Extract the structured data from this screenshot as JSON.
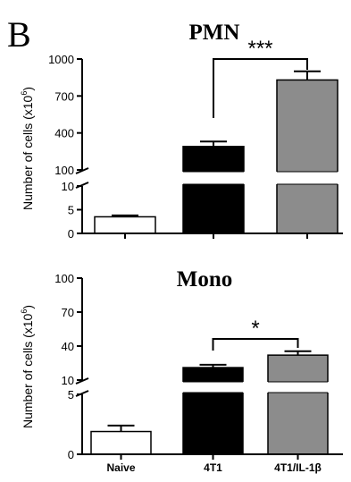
{
  "panel_letter": "B",
  "chart_data": [
    {
      "type": "bar",
      "title": "PMN",
      "ylabel": "Number of cells (x10",
      "ylabel_exp": "6",
      "ylabel_close": ")",
      "categories": [
        "Naive",
        "4T1",
        "4T1/IL-1β"
      ],
      "values": [
        3.5,
        290,
        830
      ],
      "errors": [
        0.3,
        40,
        70
      ],
      "colors": [
        "#ffffff",
        "#000000",
        "#8c8c8c"
      ],
      "axis_break": true,
      "lower_range": [
        0,
        10
      ],
      "upper_range": [
        100,
        1000
      ],
      "lower_ticks": [
        "0",
        "5",
        "10"
      ],
      "upper_ticks": [
        "100",
        "400",
        "700",
        "1000"
      ],
      "grid": false,
      "significance": {
        "from": "4T1",
        "to": "4T1/IL-1β",
        "label": "***"
      }
    },
    {
      "type": "bar",
      "title": "Mono",
      "ylabel": "Number of cells (x10",
      "ylabel_exp": "6",
      "ylabel_close": ")",
      "categories": [
        "Naive",
        "4T1",
        "4T1/IL-1β"
      ],
      "values": [
        1.9,
        21,
        32
      ],
      "errors": [
        0.5,
        2.5,
        3.5
      ],
      "colors": [
        "#ffffff",
        "#000000",
        "#8c8c8c"
      ],
      "axis_break": true,
      "lower_range": [
        0,
        5
      ],
      "upper_range": [
        10,
        100
      ],
      "lower_ticks": [
        "0",
        "5"
      ],
      "upper_ticks": [
        "10",
        "40",
        "70",
        "100"
      ],
      "grid": false,
      "significance": {
        "from": "4T1",
        "to": "4T1/IL-1β",
        "label": "*"
      }
    }
  ]
}
